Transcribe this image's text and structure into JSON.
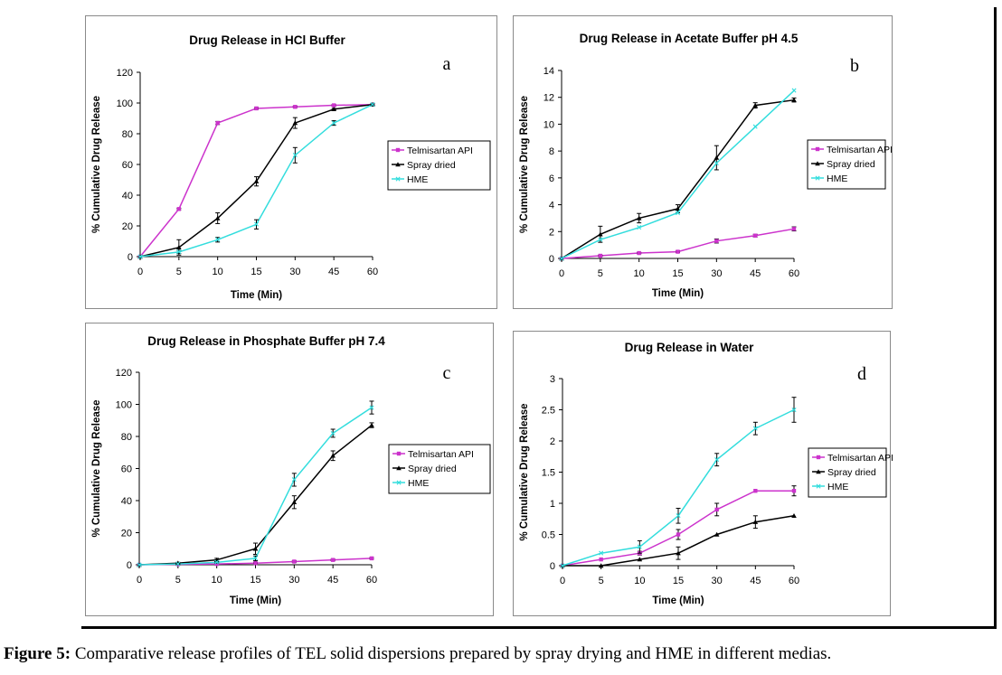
{
  "colors": {
    "api": "#cc33cc",
    "spray": "#000000",
    "hme": "#33dddd",
    "frame": "#000000"
  },
  "caption": {
    "label": "Figure 5:",
    "text": "Comparative release profiles of TEL solid dispersions prepared by spray drying and HME in different medias."
  },
  "chart_data": [
    {
      "type": "line",
      "panel_letter": "a",
      "title": "Drug Release in HCl Buffer",
      "xlabel": "Time (Min)",
      "ylabel": "% Cumulative Drug Release",
      "categories": [
        "0",
        "5",
        "10",
        "15",
        "30",
        "45",
        "60"
      ],
      "ylim": [
        0,
        120
      ],
      "yticks": [
        "0",
        "20",
        "40",
        "60",
        "80",
        "100",
        "120"
      ],
      "legend_position": "right",
      "series": [
        {
          "name": "Telmisartan API",
          "values": [
            0,
            31,
            87,
            96.5,
            97.5,
            98.5,
            99
          ],
          "errors": [
            0,
            0.5,
            1,
            0.5,
            0.5,
            0.5,
            0.5
          ]
        },
        {
          "name": "Spray dried",
          "values": [
            0,
            6,
            25,
            49,
            87,
            96,
            99
          ],
          "errors": [
            0,
            5,
            3.5,
            3,
            3.5,
            0.5,
            0.5
          ]
        },
        {
          "name": "HME",
          "values": [
            0,
            3,
            11,
            21,
            66,
            87,
            99
          ],
          "errors": [
            0,
            1,
            1.5,
            3,
            5,
            1.5,
            0.5
          ]
        }
      ]
    },
    {
      "type": "line",
      "panel_letter": "b",
      "title": "Drug Release in Acetate Buffer pH 4.5",
      "xlabel": "Time (Min)",
      "ylabel": "% Cumulative Drug Release",
      "categories": [
        "0",
        "5",
        "10",
        "15",
        "30",
        "45",
        "60"
      ],
      "ylim": [
        0,
        14
      ],
      "yticks": [
        "0",
        "2",
        "4",
        "6",
        "8",
        "10",
        "12",
        "14"
      ],
      "legend_position": "right",
      "series": [
        {
          "name": "Telmisartan API",
          "values": [
            0,
            0.2,
            0.4,
            0.5,
            1.3,
            1.7,
            2.2
          ],
          "errors": [
            0,
            0.05,
            0.05,
            0.05,
            0.15,
            0.1,
            0.15
          ]
        },
        {
          "name": "Spray dried",
          "values": [
            0,
            1.8,
            3.0,
            3.7,
            7.5,
            11.4,
            11.8
          ],
          "errors": [
            0,
            0.6,
            0.35,
            0.3,
            0.9,
            0.2,
            0.15
          ]
        },
        {
          "name": "HME",
          "values": [
            0,
            1.4,
            2.3,
            3.4,
            7.1,
            9.8,
            12.5
          ],
          "errors": [
            0,
            0,
            0,
            0,
            0,
            0,
            0
          ]
        }
      ]
    },
    {
      "type": "line",
      "panel_letter": "c",
      "title": "Drug Release in Phosphate Buffer pH 7.4",
      "xlabel": "Time (Min)",
      "ylabel": "% Cumulative Drug Release",
      "categories": [
        "0",
        "5",
        "10",
        "15",
        "30",
        "45",
        "60"
      ],
      "ylim": [
        0,
        120
      ],
      "yticks": [
        "0",
        "20",
        "40",
        "60",
        "80",
        "100",
        "120"
      ],
      "legend_position": "right",
      "series": [
        {
          "name": "Telmisartan API",
          "values": [
            0,
            0.3,
            0.5,
            1,
            2,
            3,
            4
          ],
          "errors": [
            0,
            0,
            0,
            0.3,
            0.5,
            0.5,
            0.5
          ]
        },
        {
          "name": "Spray dried",
          "values": [
            0,
            1,
            3,
            10,
            39,
            68,
            87
          ],
          "errors": [
            0,
            0.5,
            1,
            3.5,
            4,
            3,
            1.5
          ]
        },
        {
          "name": "HME",
          "values": [
            0,
            0.5,
            1.5,
            4,
            53,
            82,
            98
          ],
          "errors": [
            0,
            0.3,
            0.5,
            1.5,
            4,
            2.5,
            4
          ]
        }
      ]
    },
    {
      "type": "line",
      "panel_letter": "d",
      "title": "Drug Release in Water",
      "xlabel": "Time (Min)",
      "ylabel": "% Cumulative Drug Release",
      "categories": [
        "0",
        "5",
        "10",
        "15",
        "30",
        "45",
        "60"
      ],
      "ylim": [
        0,
        3
      ],
      "yticks": [
        "0",
        "0.5",
        "1",
        "1.5",
        "2",
        "2.5",
        "3"
      ],
      "legend_position": "right",
      "series": [
        {
          "name": "Telmisartan API",
          "values": [
            0,
            0.1,
            0.2,
            0.5,
            0.9,
            1.2,
            1.2
          ],
          "errors": [
            0,
            0,
            0.03,
            0.08,
            0.1,
            0,
            0.08
          ]
        },
        {
          "name": "Spray dried",
          "values": [
            0,
            0,
            0.1,
            0.2,
            0.5,
            0.7,
            0.8
          ],
          "errors": [
            0,
            0,
            0,
            0.1,
            0,
            0.1,
            0
          ]
        },
        {
          "name": "HME",
          "values": [
            0,
            0.2,
            0.3,
            0.8,
            1.7,
            2.2,
            2.5
          ],
          "errors": [
            0,
            0,
            0.1,
            0.12,
            0.1,
            0.1,
            0.2
          ]
        }
      ]
    }
  ]
}
